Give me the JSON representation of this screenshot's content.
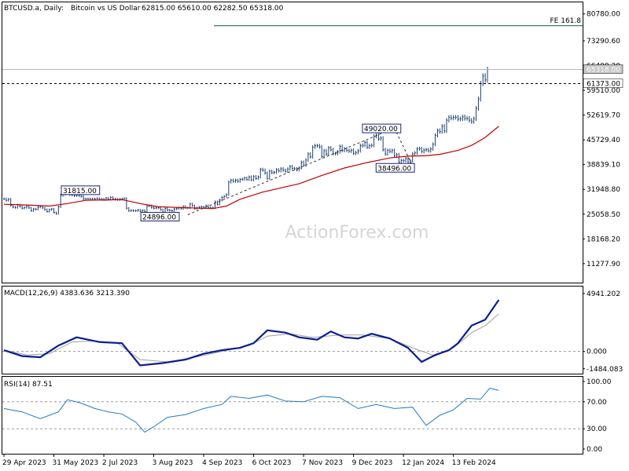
{
  "header": {
    "symbol": "BTCUSD.a, Daily:",
    "description": "Bitcoin vs US Dollar",
    "ohlc": "62815.00 65610.00 62282.50 65318.00"
  },
  "watermark": "ActionForex.com",
  "colors": {
    "price_bars": "#1c3f6e",
    "sma": "#c00000",
    "macd": "#0b1f8f",
    "macd_signal": "#a0a0a0",
    "rsi": "#1f7ac7",
    "fib_line": "#0a5a4a",
    "axis": "#000000",
    "grid_dash": "#9a9a9a"
  },
  "chart_data": [
    {
      "type": "line",
      "panel": "price",
      "title": "BTCUSD.a, Daily: Bitcoin vs US Dollar 62815.00 65610.00 62282.50 65318.00",
      "y_ticks": [
        "80780.00",
        "73290.60",
        "66400.20",
        "59510.00",
        "52619.70",
        "45729.40",
        "38839.10",
        "31948.80",
        "25058.50",
        "18168.20",
        "11277.90"
      ],
      "ylim": [
        6000,
        84000
      ],
      "x_ticks": [
        "29 Apr 2023",
        "31 May 2023",
        "2 Jul 2023",
        "3 Aug 2023",
        "4 Sep 2023",
        "6 Oct 2023",
        "7 Nov 2023",
        "9 Dec 2023",
        "12 Jan 2024",
        "13 Feb 2024"
      ],
      "series": [
        {
          "name": "Close",
          "values": [
            29300,
            28900,
            29200,
            27500,
            27000,
            26900,
            27600,
            27200,
            26700,
            26900,
            27200,
            26800,
            26000,
            26500,
            26400,
            27000,
            27200,
            26800,
            26300,
            25800,
            26300,
            26500,
            25500,
            25200,
            27100,
            30300,
            30600,
            30800,
            31200,
            30500,
            30400,
            30200,
            30300,
            30200,
            30000,
            29300,
            29300,
            29300,
            29200,
            29300,
            29200,
            29400,
            29200,
            29200,
            29100,
            29500,
            29200,
            29700,
            29300,
            29200,
            29100,
            29200,
            29300,
            29400,
            26700,
            26000,
            26100,
            26000,
            26000,
            26200,
            25900,
            26100,
            25800,
            27300,
            27400,
            26900,
            26700,
            26800,
            26800,
            26300,
            25600,
            26600,
            26200,
            26100,
            26000,
            26500,
            26600,
            26800,
            26600,
            27200,
            26800,
            26800,
            27900,
            27400,
            26600,
            26800,
            27000,
            27100,
            26900,
            27400,
            26900,
            26800,
            26800,
            28500,
            27800,
            29000,
            29700,
            30000,
            30500,
            34000,
            34500,
            34200,
            34500,
            34200,
            34700,
            34800,
            35100,
            34700,
            35400,
            34600,
            35500,
            35000,
            35400,
            37500,
            37300,
            36500,
            35000,
            37000,
            36600,
            36700,
            37400,
            37100,
            37700,
            37300,
            37000,
            37600,
            38300,
            37800,
            37700,
            37400,
            37900,
            39500,
            38700,
            40100,
            41800,
            41000,
            43700,
            44100,
            44100,
            43800,
            41100,
            42700,
            41800,
            43500,
            43000,
            41900,
            41900,
            42400,
            43900,
            42800,
            43200,
            42800,
            42600,
            42800,
            42000,
            42200,
            42700,
            44100,
            44200,
            45000,
            43700,
            44100,
            44200,
            46700,
            47000,
            46000,
            46200,
            43000,
            41800,
            42800,
            42500,
            42800,
            41300,
            41600,
            39500,
            40000,
            39900,
            40500,
            39600,
            39900,
            41800,
            42100,
            43200,
            43300,
            42500,
            42900,
            43000,
            42700,
            43200,
            44500,
            47000,
            48300,
            48000,
            49500,
            48200,
            51200,
            52000,
            51800,
            52000,
            52000,
            51500,
            51600,
            52100,
            51700,
            51700,
            51200,
            50800,
            51600,
            54500,
            57100,
            61400,
            63500,
            62400,
            65300
          ]
        },
        {
          "name": "SMA",
          "values": [
            [
              0,
              27800
            ],
            [
              10,
              27600
            ],
            [
              20,
              27300
            ],
            [
              28,
              28000
            ],
            [
              36,
              28900
            ],
            [
              52,
              29100
            ],
            [
              60,
              28000
            ],
            [
              68,
              27100
            ],
            [
              82,
              26800
            ],
            [
              92,
              26600
            ],
            [
              98,
              27300
            ],
            [
              104,
              29200
            ],
            [
              114,
              31200
            ],
            [
              130,
              33500
            ],
            [
              140,
              35800
            ],
            [
              150,
              37900
            ],
            [
              160,
              39400
            ],
            [
              170,
              40700
            ],
            [
              178,
              41200
            ],
            [
              186,
              41300
            ],
            [
              192,
              41700
            ],
            [
              200,
              42800
            ],
            [
              206,
              44200
            ],
            [
              212,
              46400
            ],
            [
              218,
              49500
            ]
          ]
        }
      ],
      "annotations": [
        {
          "label": "31815.00",
          "value": 31815
        },
        {
          "label": "24896.00",
          "value": 24896
        },
        {
          "label": "49020.00",
          "value": 49020
        },
        {
          "label": "38496.00",
          "value": 38496
        },
        {
          "label": "FE 161.8",
          "value": 77500
        },
        {
          "label": "65318.00",
          "value": 65318
        },
        {
          "label": "61373.00",
          "value": 61373
        }
      ]
    },
    {
      "type": "line",
      "panel": "macd",
      "title": "MACD(12,26,9) 4383.636 3213.390",
      "y_ticks": [
        "4941.202",
        "0.000",
        "-1484.083"
      ],
      "ylim": [
        -1500,
        5000
      ],
      "series": [
        {
          "name": "MACD",
          "values": [
            [
              0,
              100
            ],
            [
              8,
              -400
            ],
            [
              16,
              -500
            ],
            [
              24,
              500
            ],
            [
              32,
              1200
            ],
            [
              42,
              800
            ],
            [
              52,
              700
            ],
            [
              60,
              -1200
            ],
            [
              70,
              -1000
            ],
            [
              80,
              -700
            ],
            [
              88,
              -200
            ],
            [
              96,
              100
            ],
            [
              104,
              300
            ],
            [
              110,
              700
            ],
            [
              116,
              1800
            ],
            [
              124,
              1600
            ],
            [
              130,
              1200
            ],
            [
              138,
              1000
            ],
            [
              144,
              1700
            ],
            [
              150,
              1200
            ],
            [
              156,
              1100
            ],
            [
              162,
              1500
            ],
            [
              170,
              1100
            ],
            [
              178,
              300
            ],
            [
              184,
              -900
            ],
            [
              190,
              -300
            ],
            [
              196,
              100
            ],
            [
              200,
              700
            ],
            [
              206,
              2200
            ],
            [
              212,
              2700
            ],
            [
              218,
              4400
            ]
          ]
        },
        {
          "name": "Signal",
          "values": [
            [
              0,
              100
            ],
            [
              10,
              -300
            ],
            [
              20,
              -200
            ],
            [
              30,
              800
            ],
            [
              40,
              900
            ],
            [
              50,
              700
            ],
            [
              60,
              -700
            ],
            [
              72,
              -900
            ],
            [
              84,
              -500
            ],
            [
              96,
              0
            ],
            [
              108,
              500
            ],
            [
              116,
              1300
            ],
            [
              126,
              1500
            ],
            [
              136,
              1200
            ],
            [
              148,
              1400
            ],
            [
              158,
              1400
            ],
            [
              170,
              1100
            ],
            [
              180,
              300
            ],
            [
              190,
              -400
            ],
            [
              198,
              300
            ],
            [
              206,
              1600
            ],
            [
              212,
              2200
            ],
            [
              218,
              3200
            ]
          ]
        }
      ]
    },
    {
      "type": "line",
      "panel": "rsi",
      "title": "RSI(14) 87.51",
      "y_ticks": [
        "100.00",
        "70.00",
        "30.00",
        "0.00"
      ],
      "ylim": [
        0,
        100
      ],
      "series": [
        {
          "name": "RSI(14)",
          "values": [
            [
              0,
              60
            ],
            [
              8,
              55
            ],
            [
              16,
              45
            ],
            [
              24,
              55
            ],
            [
              28,
              73
            ],
            [
              34,
              68
            ],
            [
              40,
              60
            ],
            [
              46,
              55
            ],
            [
              52,
              52
            ],
            [
              58,
              40
            ],
            [
              62,
              25
            ],
            [
              66,
              33
            ],
            [
              72,
              47
            ],
            [
              80,
              51
            ],
            [
              88,
              60
            ],
            [
              96,
              66
            ],
            [
              100,
              78
            ],
            [
              108,
              75
            ],
            [
              116,
              80
            ],
            [
              124,
              71
            ],
            [
              132,
              70
            ],
            [
              140,
              78
            ],
            [
              148,
              76
            ],
            [
              156,
              60
            ],
            [
              164,
              66
            ],
            [
              172,
              60
            ],
            [
              180,
              62
            ],
            [
              186,
              35
            ],
            [
              192,
              50
            ],
            [
              198,
              58
            ],
            [
              204,
              75
            ],
            [
              210,
              74
            ],
            [
              214,
              90
            ],
            [
              218,
              87
            ]
          ]
        }
      ]
    }
  ]
}
